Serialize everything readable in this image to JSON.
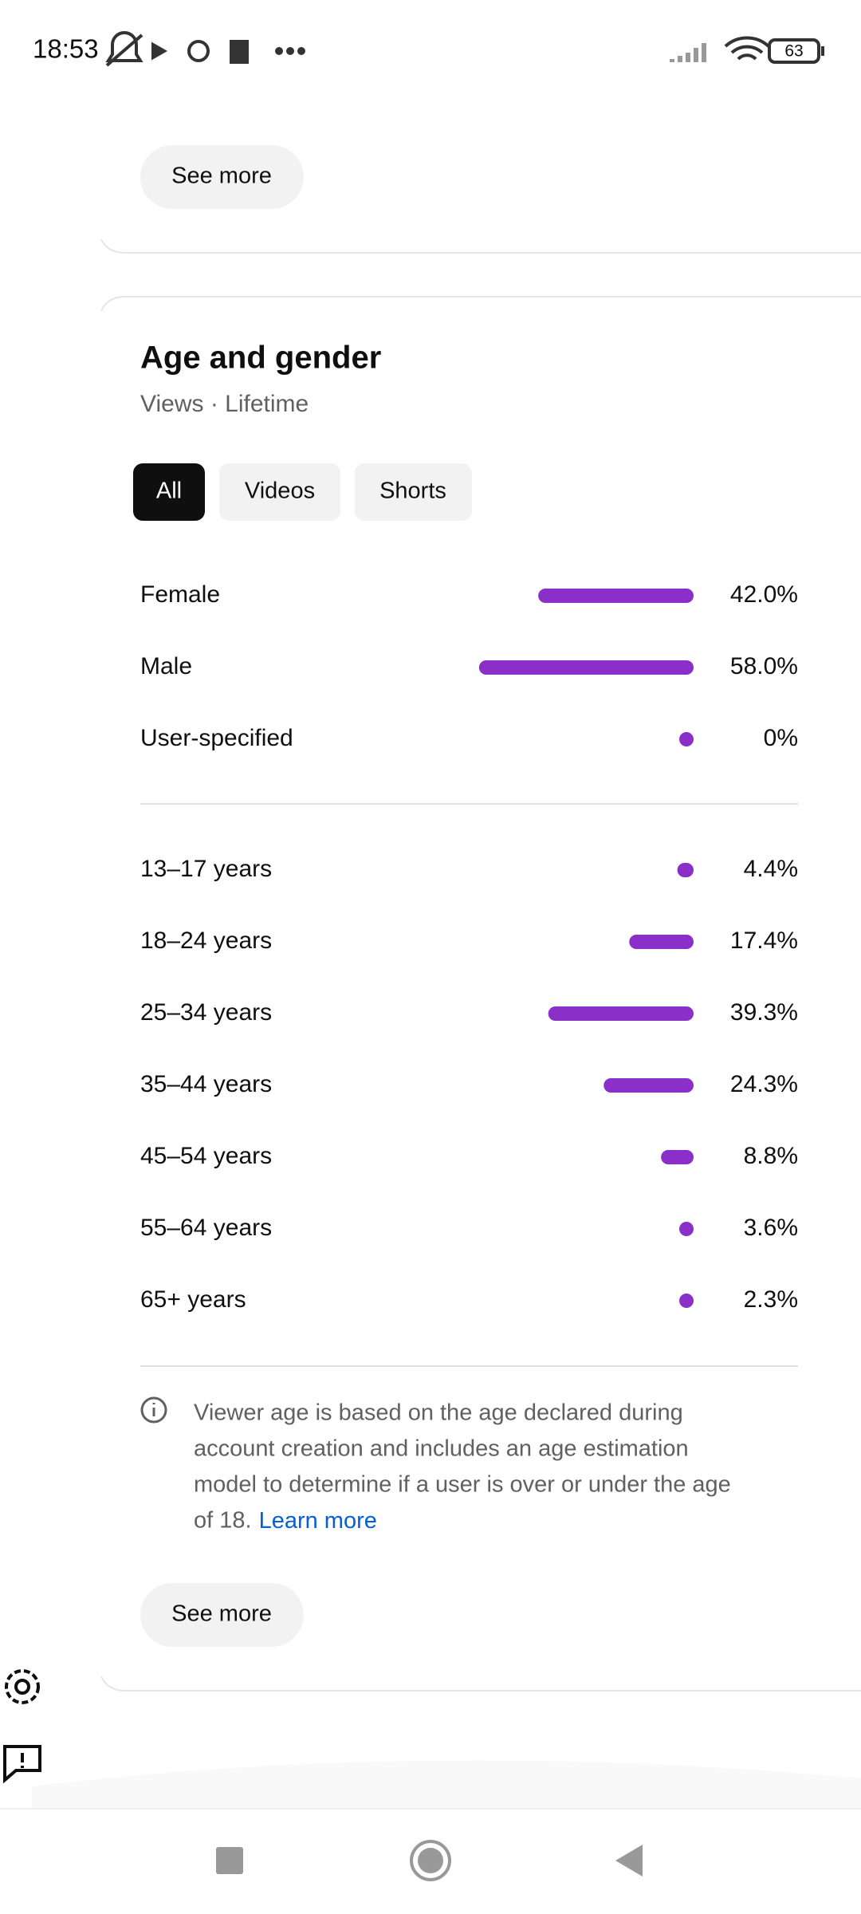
{
  "status_bar": {
    "time": "18:53",
    "battery": "63"
  },
  "top_card": {
    "button": "See more"
  },
  "card": {
    "title": "Age and gender",
    "subtitle": "Views · Lifetime",
    "chips": [
      "All",
      "Videos",
      "Shorts"
    ],
    "bar_color": "#8b2fc9",
    "gender": [
      {
        "label": "Female",
        "value": 42.0,
        "value_label": "42.0%"
      },
      {
        "label": "Male",
        "value": 58.0,
        "value_label": "58.0%"
      },
      {
        "label": "User-specified",
        "value": 0,
        "value_label": "0%"
      }
    ],
    "age": [
      {
        "label": "13–17 years",
        "value": 4.4,
        "value_label": "4.4%"
      },
      {
        "label": "18–24 years",
        "value": 17.4,
        "value_label": "17.4%"
      },
      {
        "label": "25–34 years",
        "value": 39.3,
        "value_label": "39.3%"
      },
      {
        "label": "35–44 years",
        "value": 24.3,
        "value_label": "24.3%"
      },
      {
        "label": "45–54 years",
        "value": 8.8,
        "value_label": "8.8%"
      },
      {
        "label": "55–64 years",
        "value": 3.6,
        "value_label": "3.6%"
      },
      {
        "label": "65+ years",
        "value": 2.3,
        "value_label": "2.3%"
      }
    ],
    "note_lines": [
      "Viewer age is based on the age declared during",
      "account creation and includes an age estimation",
      "model to determine if a user is over or under the age",
      "of 18."
    ],
    "learn_more": "Learn more",
    "button": "See more"
  }
}
